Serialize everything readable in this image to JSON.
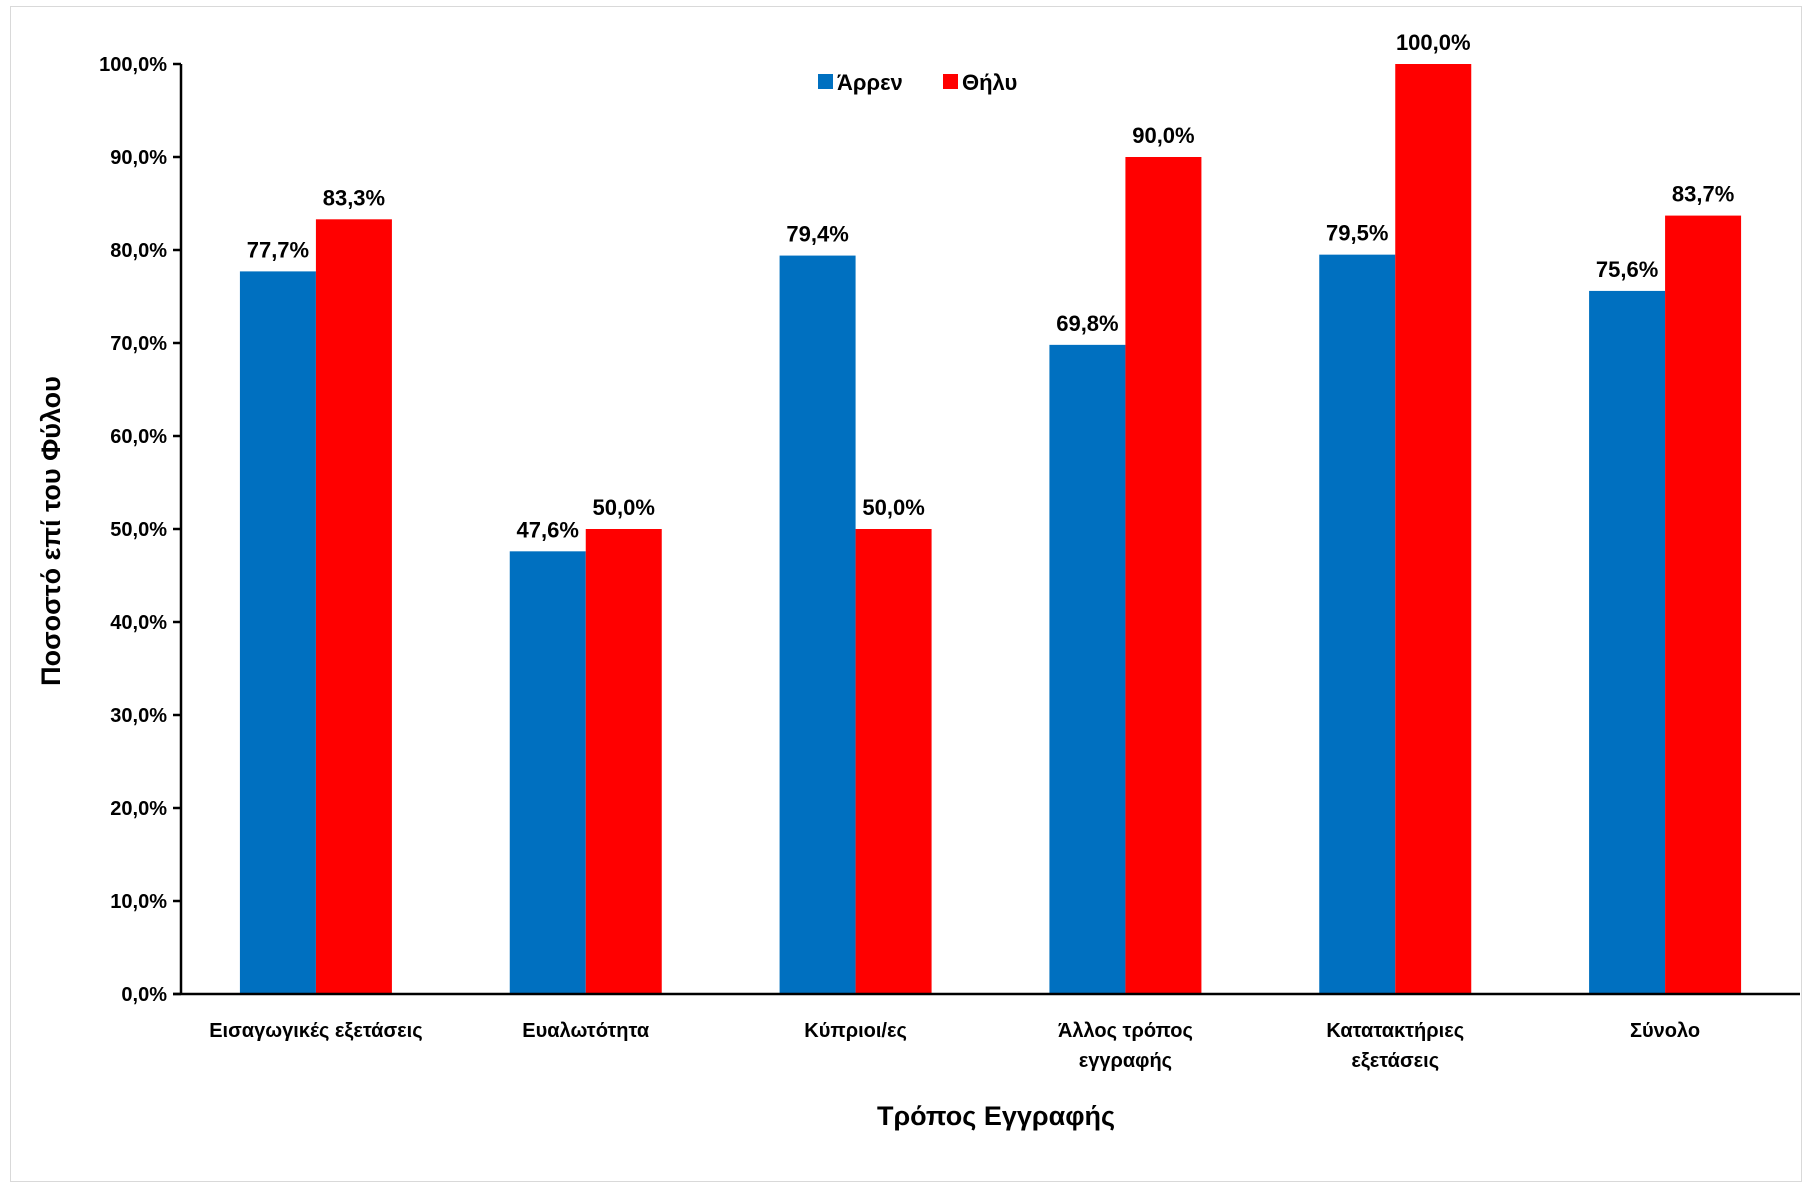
{
  "chart_data": {
    "type": "bar",
    "title": "",
    "xlabel": "Τρόπος Εγγραφής",
    "ylabel": "Ποσοστό επί του Φύλου",
    "ylim": [
      0,
      100
    ],
    "yticks": [
      "0,0%",
      "10,0%",
      "20,0%",
      "30,0%",
      "40,0%",
      "50,0%",
      "60,0%",
      "70,0%",
      "80,0%",
      "90,0%",
      "100,0%"
    ],
    "categories": [
      [
        "Εισαγωγικές εξετάσεις"
      ],
      [
        "Ευαλωτότητα"
      ],
      [
        "Κύπριοι/ες"
      ],
      [
        "Άλλος τρόπος",
        "εγγραφής"
      ],
      [
        "Κατατακτήριες",
        "εξετάσεις"
      ],
      [
        "Σύνολο"
      ]
    ],
    "series": [
      {
        "name": "Άρρεν",
        "color": "#0070C0",
        "values": [
          77.7,
          47.6,
          79.4,
          69.8,
          79.5,
          75.6
        ],
        "labels": [
          "77,7%",
          "47,6%",
          "79,4%",
          "69,8%",
          "79,5%",
          "75,6%"
        ]
      },
      {
        "name": "Θήλυ",
        "color": "#FF0000",
        "values": [
          83.3,
          50.0,
          50.0,
          90.0,
          100.0,
          83.7
        ],
        "labels": [
          "83,3%",
          "50,0%",
          "50,0%",
          "90,0%",
          "100,0%",
          "83,7%"
        ]
      }
    ],
    "grid": false,
    "legend_position": "top-center"
  }
}
